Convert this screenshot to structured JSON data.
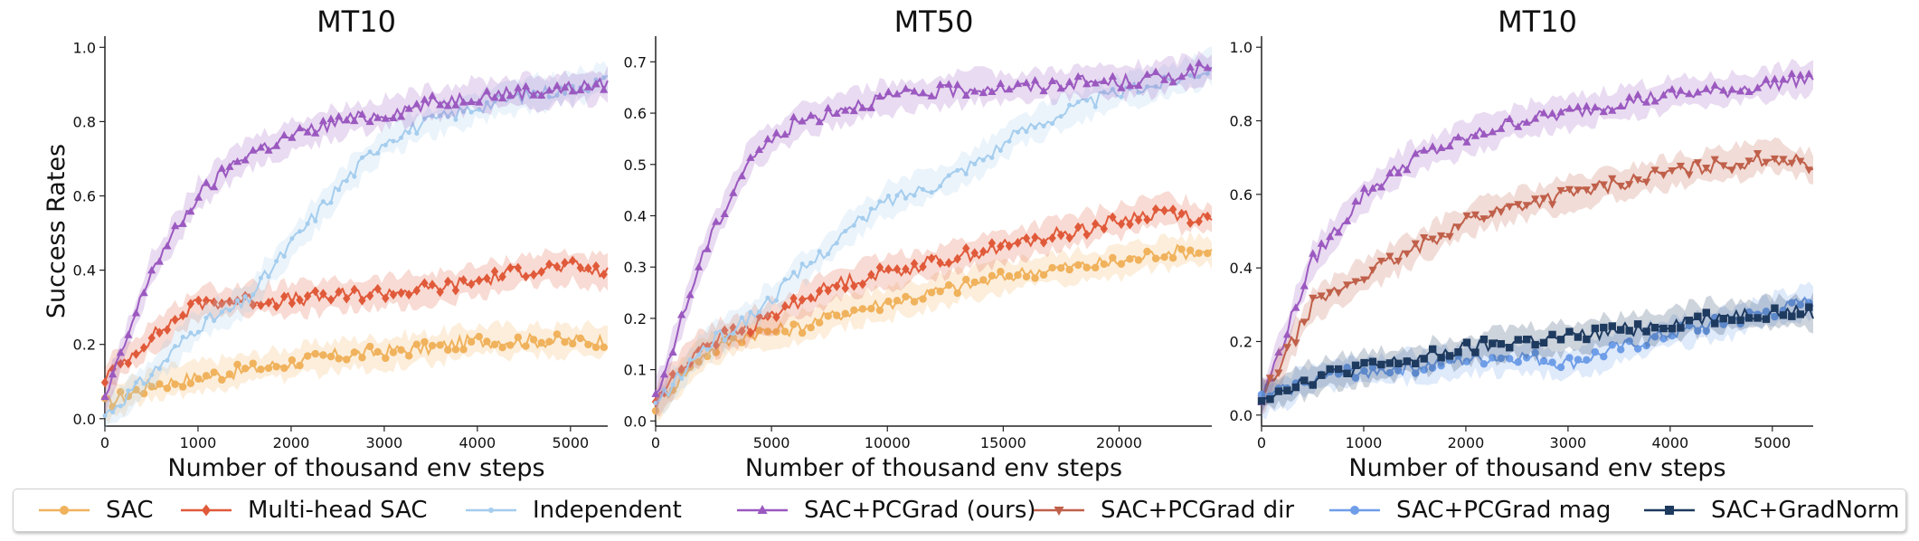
{
  "colors": {
    "sac": "#f0b25c",
    "multihead": "#e05a3a",
    "independent": "#a5cdee",
    "pcgrad": "#9b59c0",
    "pcgrad_dir": "#c0604a",
    "pcgrad_mag": "#6f9ee8",
    "gradnorm": "#1e3a5f"
  },
  "legend": [
    {
      "name": "SAC",
      "key": "sac",
      "marker": "circle"
    },
    {
      "name": "Multi-head SAC",
      "key": "multihead",
      "marker": "diamond"
    },
    {
      "name": "Independent",
      "key": "independent",
      "marker": "dot"
    },
    {
      "name": "SAC+PCGrad (ours)",
      "key": "pcgrad",
      "marker": "triangle"
    },
    {
      "name": "SAC+PCGrad dir",
      "key": "pcgrad_dir",
      "marker": "tridown"
    },
    {
      "name": "SAC+PCGrad mag",
      "key": "pcgrad_mag",
      "marker": "circle"
    },
    {
      "name": "SAC+GradNorm",
      "key": "gradnorm",
      "marker": "square"
    }
  ],
  "chart_data": [
    {
      "type": "line",
      "title": "MT10",
      "xlabel": "Number of thousand env steps",
      "ylabel": "Success Rates",
      "xlim": [
        0,
        5400
      ],
      "ylim": [
        -0.02,
        1.03
      ],
      "xticks": [
        0,
        1000,
        2000,
        3000,
        4000,
        5000
      ],
      "yticks": [
        0.0,
        0.2,
        0.4,
        0.6,
        0.8,
        1.0
      ],
      "ytick_labels": [
        "0.0",
        "0.2",
        "0.4",
        "0.6",
        "0.8",
        "1.0"
      ],
      "series": [
        {
          "name": "SAC",
          "key": "sac",
          "marker": "circle",
          "x": [
            0,
            500,
            1000,
            1500,
            2000,
            2500,
            3000,
            3500,
            4000,
            4500,
            5000,
            5400
          ],
          "values": [
            0.04,
            0.09,
            0.11,
            0.13,
            0.15,
            0.17,
            0.18,
            0.19,
            0.21,
            0.21,
            0.21,
            0.21
          ]
        },
        {
          "name": "Multi-head SAC",
          "key": "multihead",
          "marker": "diamond",
          "x": [
            0,
            500,
            1000,
            1500,
            2000,
            2500,
            3000,
            3500,
            4000,
            4500,
            5000,
            5400
          ],
          "values": [
            0.11,
            0.22,
            0.31,
            0.32,
            0.32,
            0.33,
            0.34,
            0.35,
            0.37,
            0.4,
            0.41,
            0.39
          ]
        },
        {
          "name": "Independent",
          "key": "independent",
          "marker": "dot",
          "x": [
            0,
            500,
            1000,
            1500,
            2000,
            2500,
            3000,
            3500,
            4000,
            4500,
            5000,
            5400
          ],
          "values": [
            0.01,
            0.12,
            0.25,
            0.31,
            0.47,
            0.62,
            0.75,
            0.8,
            0.84,
            0.87,
            0.89,
            0.91
          ]
        },
        {
          "name": "SAC+PCGrad (ours)",
          "key": "pcgrad",
          "marker": "triangle",
          "x": [
            0,
            500,
            1000,
            1500,
            2000,
            2500,
            3000,
            3500,
            4000,
            4500,
            5000,
            5400
          ],
          "values": [
            0.05,
            0.4,
            0.6,
            0.71,
            0.76,
            0.8,
            0.82,
            0.85,
            0.87,
            0.88,
            0.89,
            0.9
          ]
        }
      ]
    },
    {
      "type": "line",
      "title": "MT50",
      "xlabel": "Number of thousand env steps",
      "ylabel": "",
      "xlim": [
        0,
        24000
      ],
      "ylim": [
        -0.01,
        0.75
      ],
      "xticks": [
        0,
        5000,
        10000,
        15000,
        20000
      ],
      "yticks": [
        0.0,
        0.1,
        0.2,
        0.3,
        0.4,
        0.5,
        0.6,
        0.7
      ],
      "ytick_labels": [
        "0.0",
        "0.1",
        "0.2",
        "0.3",
        "0.4",
        "0.5",
        "0.6",
        "0.7"
      ],
      "series": [
        {
          "name": "SAC",
          "key": "sac",
          "marker": "circle",
          "x": [
            0,
            2000,
            4000,
            6000,
            8000,
            10000,
            12000,
            14000,
            16000,
            18000,
            20000,
            22000,
            24000
          ],
          "values": [
            0.03,
            0.13,
            0.17,
            0.18,
            0.21,
            0.23,
            0.25,
            0.27,
            0.29,
            0.3,
            0.31,
            0.33,
            0.33
          ]
        },
        {
          "name": "Multi-head SAC",
          "key": "multihead",
          "marker": "diamond",
          "x": [
            0,
            2000,
            4000,
            6000,
            8000,
            10000,
            12000,
            14000,
            16000,
            18000,
            20000,
            22000,
            24000
          ],
          "values": [
            0.04,
            0.15,
            0.18,
            0.23,
            0.27,
            0.29,
            0.31,
            0.33,
            0.35,
            0.37,
            0.39,
            0.41,
            0.39
          ]
        },
        {
          "name": "Independent",
          "key": "independent",
          "marker": "dot",
          "x": [
            0,
            2000,
            4000,
            6000,
            8000,
            10000,
            12000,
            14000,
            16000,
            18000,
            20000,
            22000,
            24000
          ],
          "values": [
            0.03,
            0.14,
            0.2,
            0.28,
            0.36,
            0.43,
            0.46,
            0.51,
            0.57,
            0.61,
            0.64,
            0.66,
            0.69
          ]
        },
        {
          "name": "SAC+PCGrad (ours)",
          "key": "pcgrad",
          "marker": "triangle",
          "x": [
            0,
            2000,
            4000,
            6000,
            8000,
            10000,
            12000,
            14000,
            16000,
            18000,
            20000,
            22000,
            24000
          ],
          "values": [
            0.04,
            0.32,
            0.51,
            0.58,
            0.61,
            0.63,
            0.64,
            0.65,
            0.65,
            0.66,
            0.66,
            0.67,
            0.69
          ]
        }
      ]
    },
    {
      "type": "line",
      "title": "MT10",
      "xlabel": "Number of thousand env steps",
      "ylabel": "",
      "xlim": [
        0,
        5400
      ],
      "ylim": [
        -0.03,
        1.03
      ],
      "xticks": [
        0,
        1000,
        2000,
        3000,
        4000,
        5000
      ],
      "yticks": [
        0.0,
        0.2,
        0.4,
        0.6,
        0.8,
        1.0
      ],
      "ytick_labels": [
        "0.0",
        "0.2",
        "0.4",
        "0.6",
        "0.8",
        "1.0"
      ],
      "series": [
        {
          "name": "SAC+PCGrad (ours)",
          "key": "pcgrad",
          "marker": "triangle",
          "x": [
            0,
            500,
            1000,
            1500,
            2000,
            2500,
            3000,
            3500,
            4000,
            4500,
            5000,
            5400
          ],
          "values": [
            0.04,
            0.42,
            0.6,
            0.7,
            0.75,
            0.8,
            0.82,
            0.85,
            0.87,
            0.88,
            0.9,
            0.92
          ]
        },
        {
          "name": "SAC+PCGrad dir",
          "key": "pcgrad_dir",
          "marker": "tridown",
          "x": [
            0,
            500,
            1000,
            1500,
            2000,
            2500,
            3000,
            3500,
            4000,
            4500,
            5000,
            5400
          ],
          "values": [
            0.04,
            0.3,
            0.38,
            0.45,
            0.53,
            0.57,
            0.6,
            0.63,
            0.66,
            0.68,
            0.7,
            0.68
          ]
        },
        {
          "name": "SAC+PCGrad mag",
          "key": "pcgrad_mag",
          "marker": "circle",
          "x": [
            0,
            500,
            1000,
            1500,
            2000,
            2500,
            3000,
            3500,
            4000,
            4500,
            5000,
            5400
          ],
          "values": [
            0.04,
            0.1,
            0.12,
            0.13,
            0.15,
            0.16,
            0.14,
            0.18,
            0.22,
            0.25,
            0.28,
            0.31
          ]
        },
        {
          "name": "SAC+GradNorm",
          "key": "gradnorm",
          "marker": "square",
          "x": [
            0,
            500,
            1000,
            1500,
            2000,
            2500,
            3000,
            3500,
            4000,
            4500,
            5000,
            5400
          ],
          "values": [
            0.05,
            0.1,
            0.13,
            0.15,
            0.18,
            0.2,
            0.21,
            0.23,
            0.25,
            0.27,
            0.28,
            0.28
          ]
        }
      ]
    }
  ]
}
